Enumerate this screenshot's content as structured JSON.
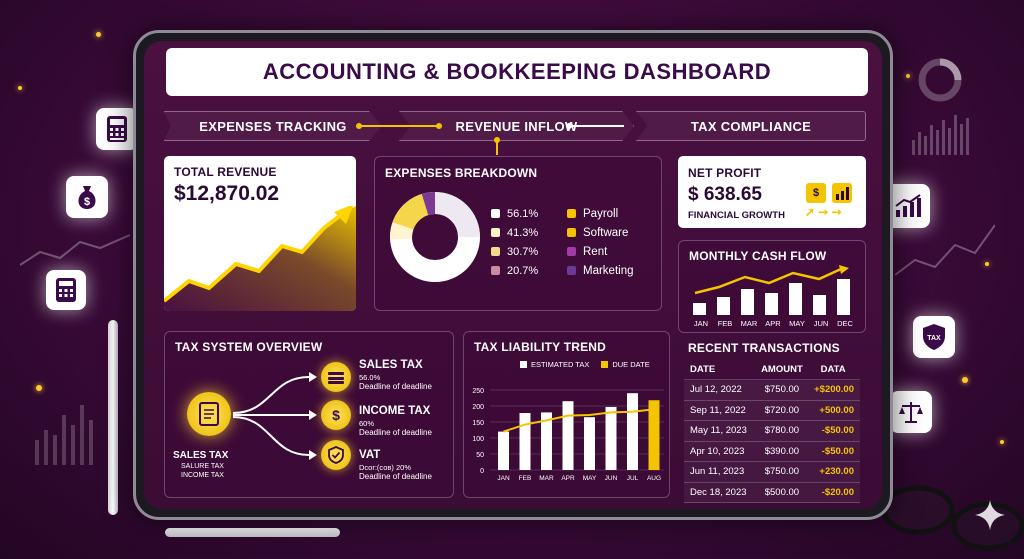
{
  "title": "ACCOUNTING & BOOKKEEPING DASHBOARD",
  "steps": [
    "EXPENSES TRACKING",
    "REVENUE INFLOW",
    "TAX COMPLIANCE"
  ],
  "revenue": {
    "label": "TOTAL REVENUE",
    "value": "$12,870.02"
  },
  "expenses": {
    "title": "EXPENSES BREAKDOWN",
    "percents": [
      "56.1%",
      "41.3%",
      "30.7%",
      "20.7%"
    ],
    "categories": [
      "Payroll",
      "Software",
      "Rent",
      "Marketing"
    ],
    "colors": {
      "pct": [
        "#ffffff",
        "#fff3c4",
        "#f2d98e",
        "#c98aa2"
      ],
      "cat": [
        "#f5c400",
        "#f5c400",
        "#a23aa8",
        "#6a3a96"
      ]
    }
  },
  "netprofit": {
    "label": "NET PROFIT",
    "value": "$ 638.65",
    "sub": "FINANCIAL GROWTH"
  },
  "cashflow": {
    "title": "MONTHLY CASH FLOW",
    "months": [
      "JAN",
      "FEB",
      "MAR",
      "APR",
      "MAY",
      "JUN",
      "DEC"
    ]
  },
  "tax": {
    "title": "TAX SYSTEM OVERVIEW",
    "center_label": "SALES TAX",
    "center_sub1": "SALURE TAX",
    "center_sub2": "INCOME TAX",
    "items": [
      {
        "name": "SALES TAX",
        "line1": "56.0%",
        "line2": "Deadline of deadline"
      },
      {
        "name": "INCOME TAX",
        "line1": "60%",
        "line2": "Deadline of deadline"
      },
      {
        "name": "VAT",
        "line1": "Dcor:(сов) 20%",
        "line2": "Deadline of deadline"
      }
    ]
  },
  "chart_data": {
    "type": "bar",
    "title": "TAX LIABILITY TREND",
    "categories": [
      "JAN",
      "FEB",
      "MAR",
      "APR",
      "MAY",
      "JUN",
      "JUL",
      "AUG"
    ],
    "series": [
      {
        "name": "ESTIMATED TAX",
        "values": [
          120,
          178,
          180,
          215,
          165,
          197,
          240,
          218
        ]
      },
      {
        "name": "DUE DATE",
        "values": [
          120,
          142,
          155,
          170,
          172,
          180,
          182,
          190
        ]
      }
    ],
    "yticks": [
      "250",
      "200",
      "150",
      "100",
      "50",
      "0"
    ],
    "ylim": [
      0,
      250
    ],
    "legend": "top"
  },
  "transactions": {
    "title": "RECENT TRANSACTIONS",
    "headers": [
      "DATE",
      "AMOUNT",
      "DATA"
    ],
    "rows": [
      [
        "Jul 12, 2022",
        "$750.00",
        "+$200.00"
      ],
      [
        "Sep 11, 2022",
        "$720.00",
        "+500.00"
      ],
      [
        "May 11, 2023",
        "$780.00",
        "-$50.00"
      ],
      [
        "Apr 10, 2023",
        "$390.00",
        "-$50.00"
      ],
      [
        "Jun 11, 2023",
        "$750.00",
        "+230.00"
      ],
      [
        "Dec 18, 2023",
        "$500.00",
        "-$20.00"
      ]
    ]
  },
  "icons": {
    "tax_badge": "TAX",
    "money_bag": "$"
  }
}
